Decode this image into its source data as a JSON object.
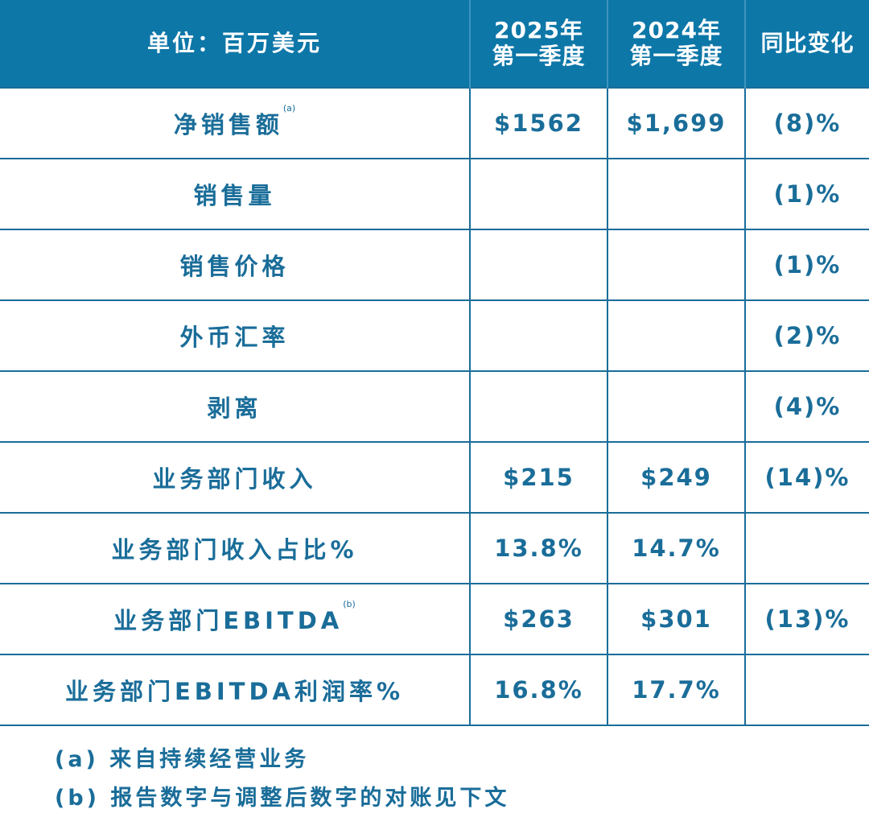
{
  "table": {
    "headers": [
      "单位：百万美元",
      "2025年\n第一季度",
      "2024年\n第一季度",
      "同比变化"
    ],
    "header_lines": {
      "h1a": "2025年",
      "h1b": "第一季度",
      "h2a": "2024年",
      "h2b": "第一季度"
    },
    "rows": [
      {
        "label": "净销售额",
        "note": "(a)",
        "q1_2025": "$1562",
        "q1_2024": "$1,699",
        "yoy": "(8)%"
      },
      {
        "label": "销售量",
        "note": "",
        "q1_2025": "",
        "q1_2024": "",
        "yoy": "(1)%"
      },
      {
        "label": "销售价格",
        "note": "",
        "q1_2025": "",
        "q1_2024": "",
        "yoy": "(1)%"
      },
      {
        "label": "外币汇率",
        "note": "",
        "q1_2025": "",
        "q1_2024": "",
        "yoy": "(2)%"
      },
      {
        "label": "剥离",
        "note": "",
        "q1_2025": "",
        "q1_2024": "",
        "yoy": "(4)%"
      },
      {
        "label": "业务部门收入",
        "note": "",
        "q1_2025": "$215",
        "q1_2024": "$249",
        "yoy": "(14)%"
      },
      {
        "label": "业务部门收入占比%",
        "note": "",
        "q1_2025": "13.8%",
        "q1_2024": "14.7%",
        "yoy": ""
      },
      {
        "label": "业务部门EBITDA",
        "note": "(b)",
        "q1_2025": "$263",
        "q1_2024": "$301",
        "yoy": "(13)%"
      },
      {
        "label": "业务部门EBITDA利润率%",
        "note": "",
        "q1_2025": "16.8%",
        "q1_2024": "17.7%",
        "yoy": ""
      }
    ]
  },
  "footnotes": [
    "(a) 来自持续经营业务",
    "(b) 报告数字与调整后数字的对账见下文"
  ],
  "colors": {
    "header_bg": "#0d77a8",
    "text": "#1a6d99"
  }
}
